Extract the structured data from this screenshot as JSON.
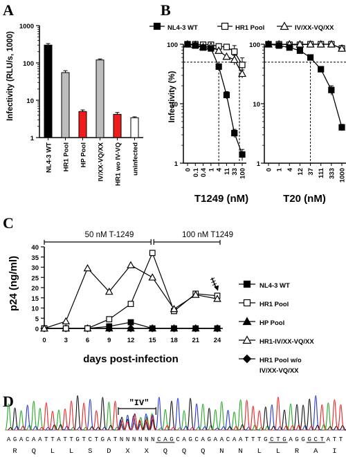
{
  "panels": {
    "A": "A",
    "B": "B",
    "C": "C",
    "D": "D"
  },
  "chart_data": [
    {
      "id": "A",
      "type": "bar",
      "ylabel": "Infectivity (RLU/s, 1000)",
      "yscale": "log",
      "ylim": [
        1,
        1000
      ],
      "yticks": [
        "1",
        "10",
        "100",
        "1000"
      ],
      "categories": [
        "NL4-3 WT",
        "HR1 Pool",
        "HP Pool",
        "IV/XX-VQ/XX",
        "HR1 wo IV-VQ",
        "uninfected"
      ],
      "values": [
        300,
        55,
        5,
        120,
        4.2,
        3.4
      ],
      "errors": [
        30,
        7,
        0.5,
        8,
        0.5,
        0.2
      ],
      "colors": [
        "#000000",
        "#bdbdbd",
        "#ee1c1c",
        "#bdbdbd",
        "#ee1c1c",
        "#ffffff"
      ]
    },
    {
      "id": "B1",
      "type": "line",
      "xlabel": "T1249 (nM)",
      "ylabel": "Infectivity (%)",
      "yscale": "log",
      "ylim": [
        1,
        100
      ],
      "yticks": [
        "1",
        "10",
        "100"
      ],
      "x": [
        "0",
        "0.1",
        "0.4",
        "1",
        "4",
        "11",
        "33",
        "100"
      ],
      "cutoff_index": 4,
      "series": [
        {
          "name": "NL4-3 WT",
          "marker": "square-filled",
          "values": [
            100,
            95,
            88,
            85,
            42,
            14,
            3.2,
            1.4
          ],
          "errors": [
            0,
            0,
            0,
            0,
            4,
            2,
            0.5,
            0.3
          ]
        },
        {
          "name": "HR1 Pool",
          "marker": "square-open",
          "values": [
            100,
            100,
            98,
            98,
            92,
            90,
            75,
            45
          ],
          "errors": [
            0,
            0,
            0,
            0,
            8,
            10,
            20,
            14
          ]
        },
        {
          "name": "IV/XX-VQ/XX",
          "marker": "triangle-open",
          "values": [
            100,
            98,
            90,
            92,
            78,
            62,
            55,
            32
          ],
          "errors": [
            0,
            0,
            0,
            0,
            0,
            0,
            10,
            5
          ]
        }
      ]
    },
    {
      "id": "B2",
      "type": "line",
      "xlabel": "T20 (nM)",
      "yscale": "log",
      "ylim": [
        1,
        100
      ],
      "yticks": [
        "1",
        "10",
        "100"
      ],
      "x": [
        "0",
        "1",
        "4",
        "12",
        "37",
        "111",
        "333",
        "1000"
      ],
      "cutoff_index": 4,
      "series": [
        {
          "name": "NL4-3 WT",
          "marker": "square-filled",
          "values": [
            100,
            95,
            88,
            78,
            60,
            38,
            17,
            4
          ],
          "errors": [
            0,
            0,
            0,
            0,
            0,
            0,
            3,
            0.5
          ]
        },
        {
          "name": "HR1 Pool",
          "marker": "square-open",
          "values": [
            100,
            100,
            98,
            98,
            100,
            100,
            100,
            85
          ],
          "errors": [
            0,
            0,
            0,
            0,
            0,
            0,
            0,
            10
          ]
        },
        {
          "name": "IV/XX-VQ/XX",
          "marker": "triangle-open",
          "values": [
            100,
            100,
            100,
            100,
            100,
            100,
            100,
            85
          ],
          "errors": [
            0,
            0,
            0,
            0,
            0,
            0,
            0,
            10
          ]
        }
      ]
    },
    {
      "id": "C",
      "type": "line",
      "xlabel": "days post-infection",
      "ylabel": "p24 (ng/ml)",
      "ylim": [
        0,
        40
      ],
      "yticks": [
        0,
        5,
        10,
        15,
        20,
        25,
        30,
        35,
        40
      ],
      "x": [
        0,
        3,
        6,
        9,
        12,
        15,
        18,
        21,
        24
      ],
      "xlim": [
        0,
        24
      ],
      "treatments": [
        "50 nM T-1249",
        "100 nM T1249"
      ],
      "switch_day": 15,
      "series": [
        {
          "name": "NL4-3 WT",
          "marker": "square-filled",
          "values": [
            0,
            0,
            0,
            1,
            3,
            0,
            0,
            0,
            0
          ]
        },
        {
          "name": "HR1 Pool",
          "marker": "square-open",
          "values": [
            0,
            0,
            0,
            4.5,
            12,
            37,
            8.5,
            17,
            16
          ]
        },
        {
          "name": "HP  Pool",
          "marker": "triangle-filled",
          "values": [
            0,
            0,
            0,
            0,
            0,
            0,
            0,
            0,
            0
          ]
        },
        {
          "name": "HR1-IV/XX-VQ/XX",
          "marker": "triangle-open",
          "values": [
            0,
            3.5,
            29.5,
            18,
            31,
            25,
            9.5,
            16.5,
            14.5
          ]
        },
        {
          "name": "HR1 Pool w/o IV/XX-VQ/XX",
          "marker": "diamond-filled",
          "values": [
            0,
            0,
            0,
            0,
            0,
            0,
            0,
            0,
            0
          ]
        }
      ]
    }
  ],
  "panelD": {
    "region_label": "\"IV\"",
    "nucleotides": "AGACAATTATTGTCTGATNNNNNNCAGCAGCAGAACAATTTGCTGAGGGCTATT",
    "amino_acids": [
      "R",
      "Q",
      "L",
      "L",
      "S",
      "D",
      "X",
      "X",
      "Q",
      "Q",
      "Q",
      "N",
      "N",
      "L",
      "L",
      "R",
      "A",
      "I"
    ],
    "colors": {
      "A": "#22aa22",
      "C": "#2233dd",
      "G": "#111111",
      "T": "#ee2222"
    }
  }
}
